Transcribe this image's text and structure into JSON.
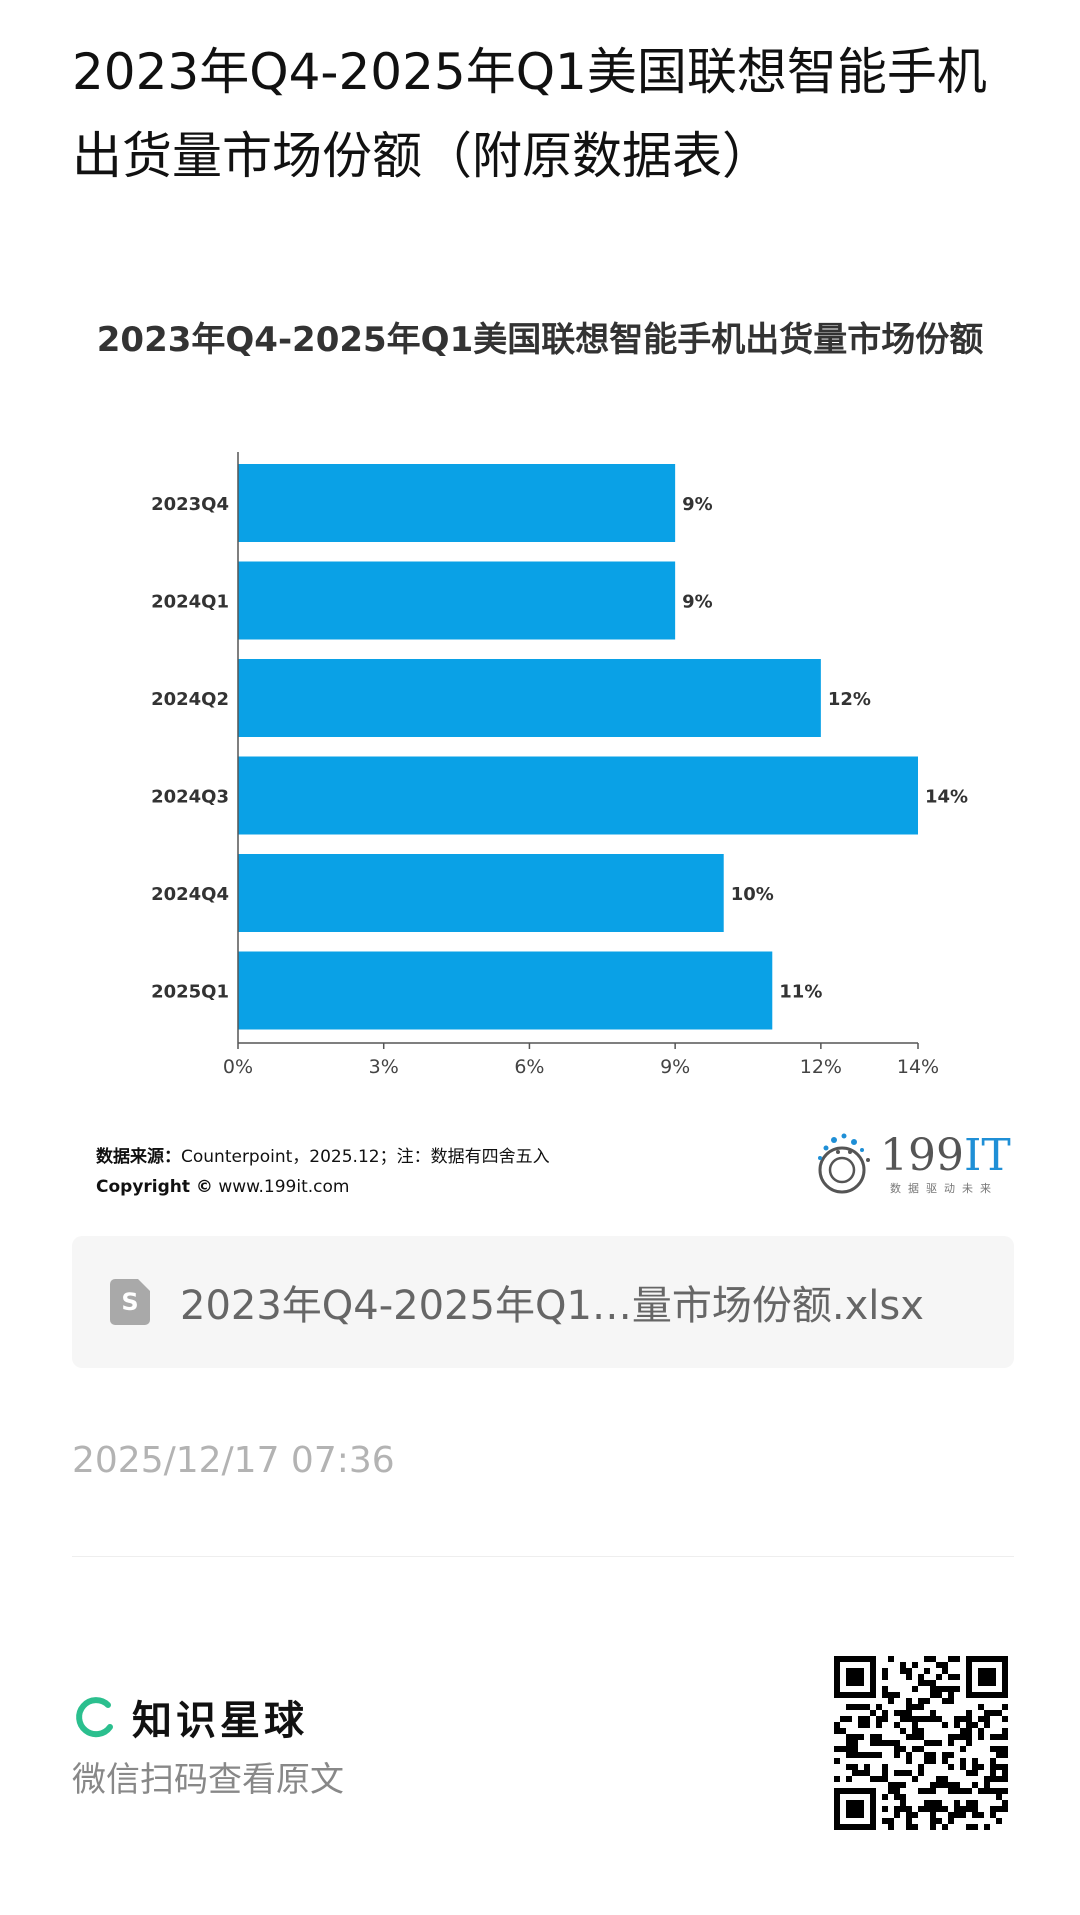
{
  "page": {
    "title": "2023年Q4-2025年Q1美国联想智能手机出货量市场份额（附原数据表）"
  },
  "chart_data": {
    "type": "bar",
    "orientation": "horizontal",
    "title": "2023年Q4-2025年Q1美国联想智能手机出货量市场份额",
    "categories": [
      "2023Q4",
      "2024Q1",
      "2024Q2",
      "2024Q3",
      "2024Q4",
      "2025Q1"
    ],
    "values": [
      9,
      9,
      12,
      14,
      10,
      11
    ],
    "value_labels": [
      "9%",
      "9%",
      "12%",
      "14%",
      "10%",
      "11%"
    ],
    "xticks": [
      "0%",
      "3%",
      "6%",
      "9%",
      "12%",
      "14%"
    ],
    "xtick_values": [
      0,
      3,
      6,
      9,
      12,
      14
    ],
    "xlim": [
      0,
      14
    ],
    "grid": false,
    "bar_color": "#0aa1e6"
  },
  "source": {
    "label": "数据来源：",
    "text": "Counterpoint，2025.12；注：数据有四舍五入",
    "copyright_label": "Copyright ©",
    "copyright_text": "www.199it.com"
  },
  "logo": {
    "main": "199",
    "accent": "IT",
    "tagline": "数据驱动未来"
  },
  "file": {
    "icon": "spreadsheet-icon",
    "icon_letter": "S",
    "name": "2023年Q4-2025年Q1…量市场份额.xlsx"
  },
  "timestamp": "2025/12/17 07:36",
  "footer": {
    "brand_name": "知识星球",
    "brand_color": "#2bbf8e",
    "subtitle": "微信扫码查看原文"
  }
}
